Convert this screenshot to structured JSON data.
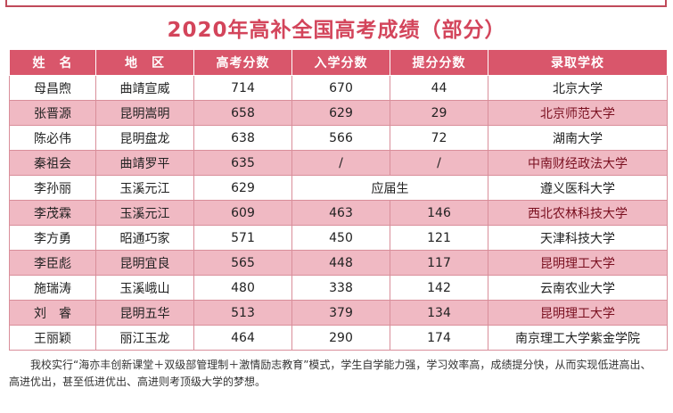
{
  "title": "2020年高补全国高考成绩（部分）",
  "table": {
    "headers": [
      "姓　名",
      "地　区",
      "高考分数",
      "入学分数",
      "提分分数",
      "录取学校"
    ],
    "rows": [
      {
        "name": "母昌煦",
        "region": "曲靖宣威",
        "gaokao": "714",
        "entry": "670",
        "gain": "44",
        "school": "北京大学"
      },
      {
        "name": "张晋源",
        "region": "昆明嵩明",
        "gaokao": "658",
        "entry": "629",
        "gain": "29",
        "school": "北京师范大学"
      },
      {
        "name": "陈必伟",
        "region": "昆明盘龙",
        "gaokao": "638",
        "entry": "566",
        "gain": "72",
        "school": "湖南大学"
      },
      {
        "name": "秦祖会",
        "region": "曲靖罗平",
        "gaokao": "635",
        "entry": "/",
        "gain": "/",
        "school": "中南财经政法大学"
      },
      {
        "name": "李孙丽",
        "region": "玉溪元江",
        "gaokao": "629",
        "merged": "应届生",
        "school": "遵义医科大学"
      },
      {
        "name": "李茂霖",
        "region": "玉溪元江",
        "gaokao": "609",
        "entry": "463",
        "gain": "146",
        "school": "西北农林科技大学"
      },
      {
        "name": "李方勇",
        "region": "昭通巧家",
        "gaokao": "571",
        "entry": "450",
        "gain": "121",
        "school": "天津科技大学"
      },
      {
        "name": "李臣彪",
        "region": "昆明宜良",
        "gaokao": "565",
        "entry": "448",
        "gain": "117",
        "school": "昆明理工大学"
      },
      {
        "name": "施瑞涛",
        "region": "玉溪峨山",
        "gaokao": "480",
        "entry": "338",
        "gain": "142",
        "school": "云南农业大学"
      },
      {
        "name": "刘　睿",
        "region": "昆明五华",
        "gaokao": "513",
        "entry": "379",
        "gain": "134",
        "school": "昆明理工大学"
      },
      {
        "name": "王丽颖",
        "region": "丽江玉龙",
        "gaokao": "464",
        "entry": "290",
        "gain": "174",
        "school": "南京理工大学紫金学院"
      }
    ]
  },
  "note": "我校实行“海亦丰创新课堂＋双级部管理制＋激情励志教育”模式，学生自学能力强，学习效率高，成绩提分快，从而实现低进高出、高进优出，甚至低进优出、高进则考顶级大学的梦想。"
}
